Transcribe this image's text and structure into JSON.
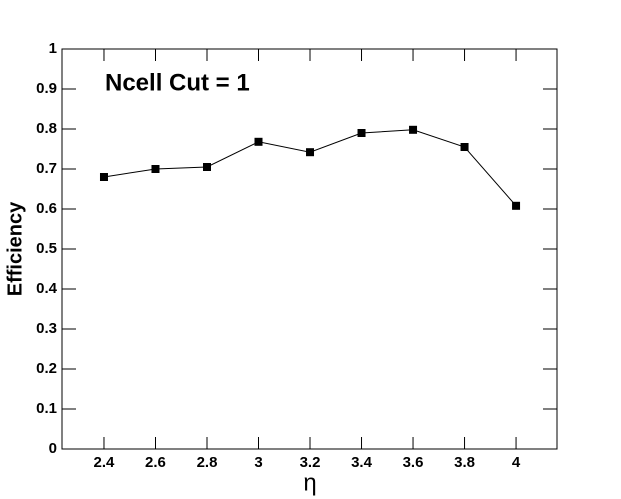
{
  "chart_data": {
    "type": "line",
    "annotation": "Ncell Cut = 1",
    "xlabel": "η",
    "ylabel": "Efficiency",
    "x": [
      2.4,
      2.6,
      2.8,
      3,
      3.2,
      3.4,
      3.6,
      3.8,
      4
    ],
    "series": [
      {
        "color": "#000000",
        "values": [
          0.68,
          0.7,
          0.705,
          0.768,
          0.742,
          0.79,
          0.798,
          0.755,
          0.608
        ]
      }
    ],
    "xlim": [
      2.237,
      4.159
    ],
    "ylim": [
      0,
      1
    ],
    "xticks": [
      2.4,
      2.6,
      2.8,
      3,
      3.2,
      3.4,
      3.6,
      3.8,
      4
    ],
    "yticks": [
      0,
      0.1,
      0.2,
      0.3,
      0.4,
      0.5,
      0.6,
      0.7,
      0.8,
      0.9,
      1
    ]
  }
}
